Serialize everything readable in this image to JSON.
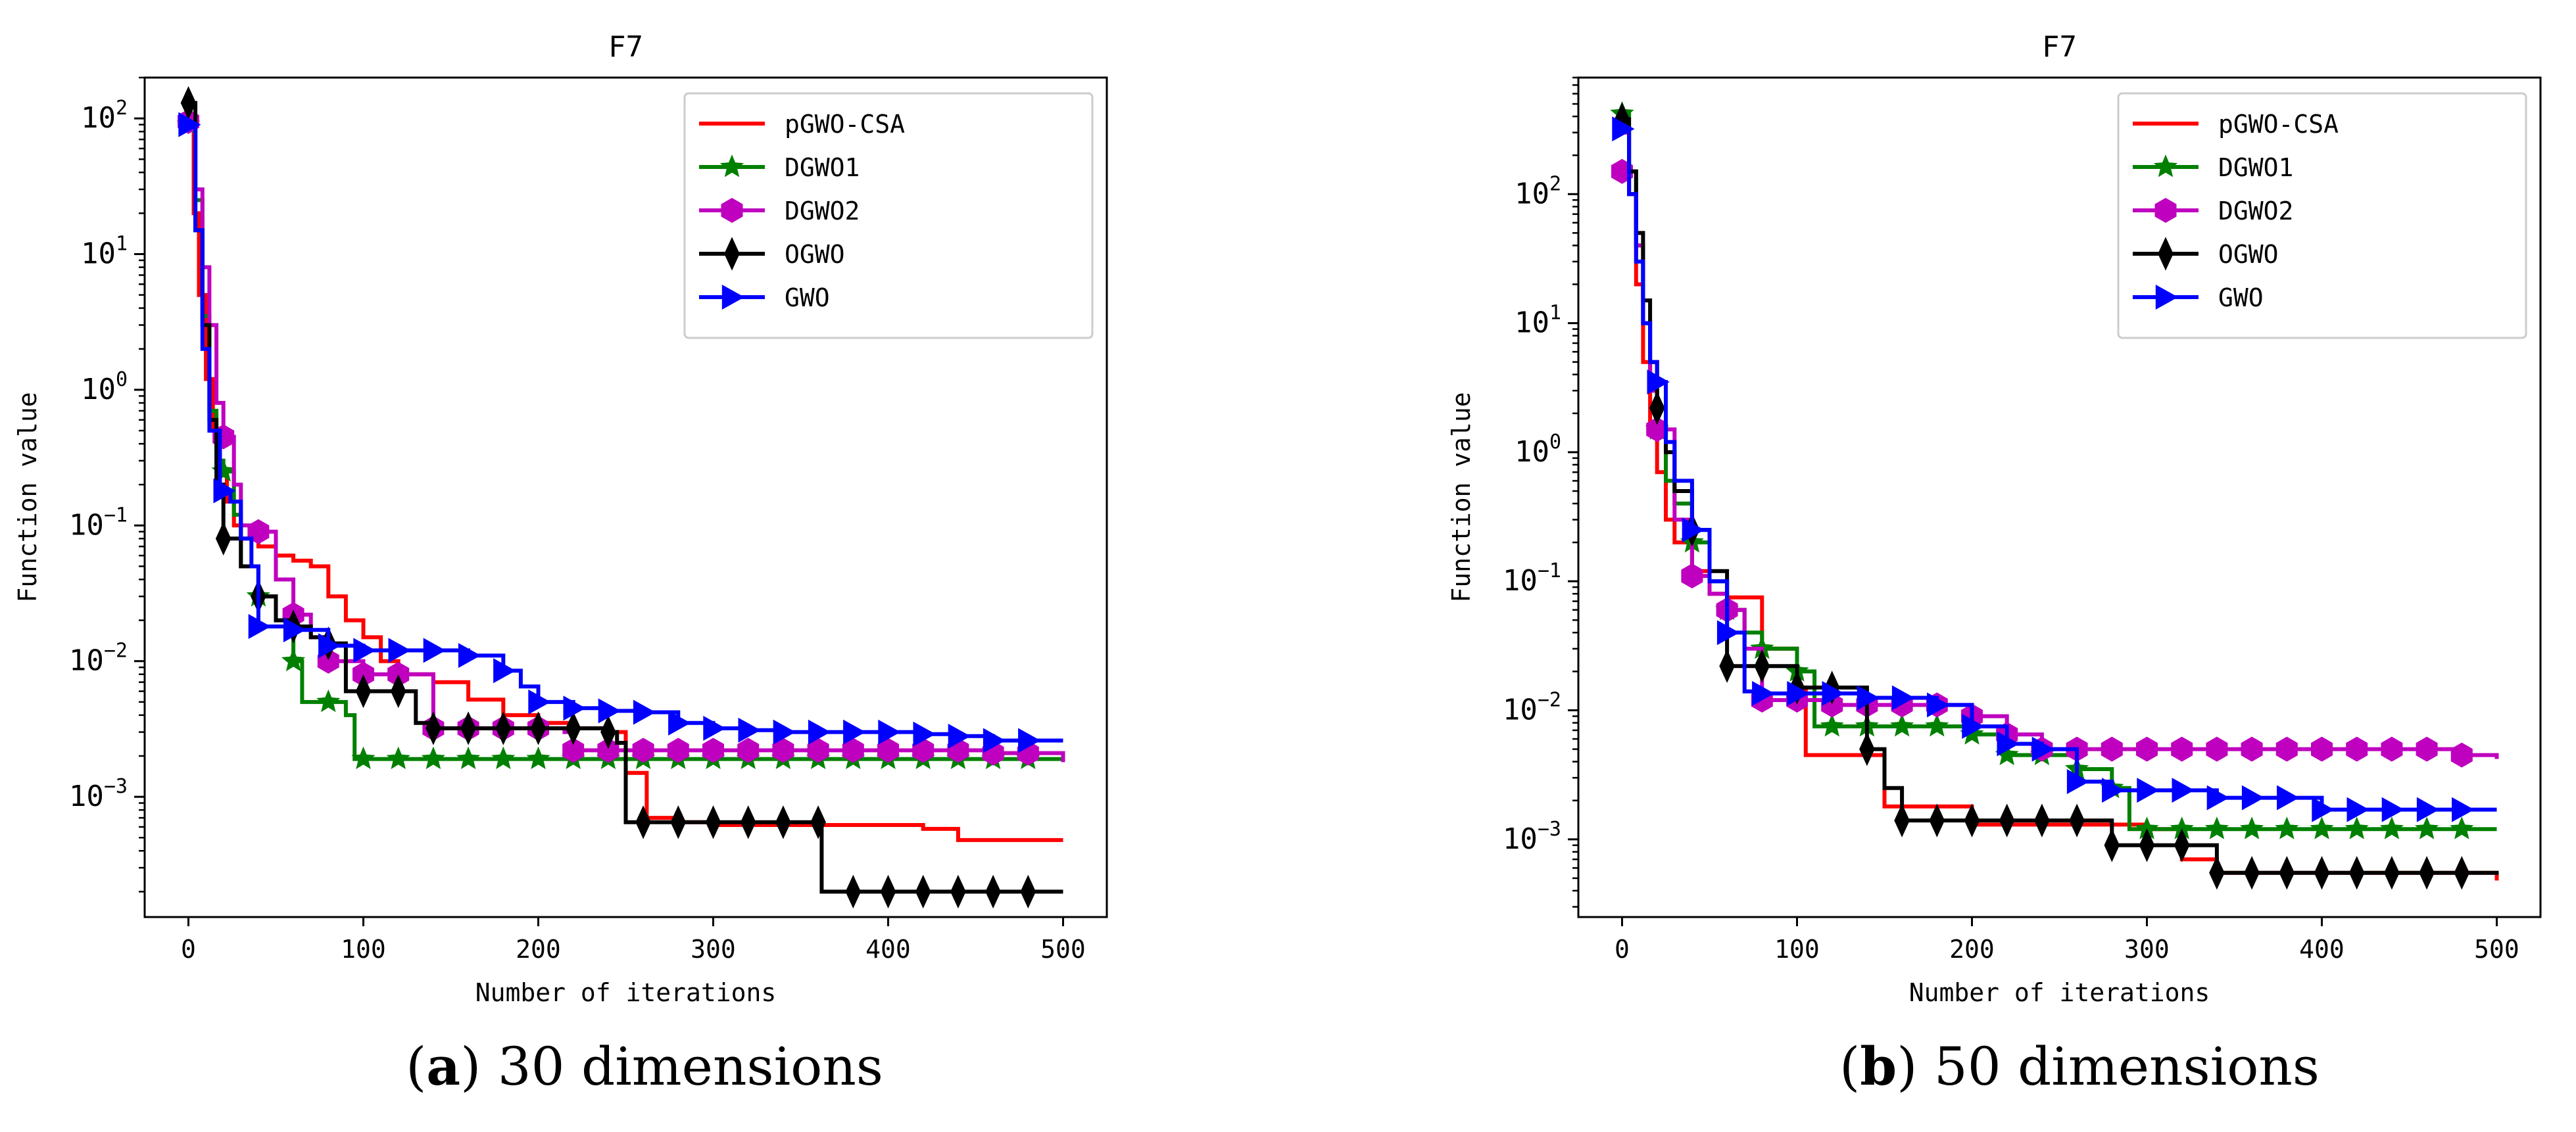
{
  "captions": [
    {
      "letter": "a",
      "text": "30 dimensions"
    },
    {
      "letter": "b",
      "text": "50 dimensions"
    }
  ],
  "chart_data": [
    {
      "type": "line",
      "title": "F7",
      "xlabel": "Number of iterations",
      "ylabel": "Function value",
      "yscale": "log",
      "xlim": [
        -25,
        525
      ],
      "ylim": [
        0.00013,
        200
      ],
      "xticks": [
        0,
        100,
        200,
        300,
        400,
        500
      ],
      "ytick_exponents": [
        -3,
        -2,
        -1,
        0,
        1,
        2
      ],
      "grid": false,
      "legend_position": "top-right",
      "series": [
        {
          "name": "pGWO-CSA",
          "color": "#ff0000",
          "marker": "none",
          "x": [
            0,
            3,
            6,
            10,
            14,
            18,
            22,
            26,
            30,
            40,
            50,
            60,
            70,
            80,
            90,
            100,
            110,
            120,
            140,
            160,
            180,
            200,
            220,
            240,
            250,
            262,
            280,
            300,
            420,
            440,
            500
          ],
          "y": [
            100,
            20,
            5,
            1.2,
            0.5,
            0.25,
            0.15,
            0.1,
            0.08,
            0.07,
            0.06,
            0.055,
            0.05,
            0.03,
            0.02,
            0.015,
            0.01,
            0.008,
            0.007,
            0.0052,
            0.004,
            0.0035,
            0.0032,
            0.003,
            0.0015,
            0.0007,
            0.00065,
            0.00062,
            0.00058,
            0.00048,
            0.00048
          ]
        },
        {
          "name": "DGWO1",
          "color": "#008000",
          "marker": "star",
          "x": [
            0,
            4,
            8,
            12,
            16,
            20,
            26,
            30,
            40,
            50,
            60,
            65,
            80,
            90,
            95,
            100,
            500
          ],
          "y": [
            90,
            25,
            3.5,
            0.7,
            0.3,
            0.25,
            0.12,
            0.05,
            0.03,
            0.02,
            0.01,
            0.005,
            0.005,
            0.004,
            0.0019,
            0.0019,
            0.0019
          ]
        },
        {
          "name": "DGWO2",
          "color": "#bf00bf",
          "marker": "hexagon",
          "x": [
            0,
            4,
            8,
            12,
            16,
            20,
            26,
            30,
            40,
            50,
            60,
            70,
            80,
            100,
            120,
            140,
            160,
            200,
            215,
            220,
            460,
            500
          ],
          "y": [
            95,
            30,
            8,
            3,
            0.8,
            0.45,
            0.2,
            0.1,
            0.09,
            0.04,
            0.022,
            0.015,
            0.01,
            0.008,
            0.008,
            0.0032,
            0.0032,
            0.0032,
            0.003,
            0.0022,
            0.0021,
            0.0018
          ]
        },
        {
          "name": "OGWO",
          "color": "#000000",
          "marker": "diamond",
          "x": [
            0,
            4,
            8,
            12,
            16,
            20,
            30,
            40,
            50,
            60,
            70,
            80,
            90,
            100,
            120,
            130,
            140,
            240,
            245,
            250,
            360,
            362,
            500
          ],
          "y": [
            130,
            15,
            3,
            0.6,
            0.2,
            0.08,
            0.05,
            0.03,
            0.02,
            0.018,
            0.015,
            0.0135,
            0.006,
            0.006,
            0.006,
            0.0035,
            0.0032,
            0.003,
            0.0025,
            0.00065,
            0.00065,
            0.0002,
            0.0002
          ]
        },
        {
          "name": "GWO",
          "color": "#0000ff",
          "marker": "triangle-right",
          "x": [
            0,
            4,
            8,
            12,
            18,
            24,
            30,
            36,
            40,
            60,
            80,
            100,
            120,
            140,
            160,
            180,
            190,
            200,
            220,
            240,
            260,
            280,
            300,
            320,
            340,
            400,
            420,
            440,
            460,
            500
          ],
          "y": [
            90,
            15,
            2,
            0.5,
            0.18,
            0.15,
            0.08,
            0.05,
            0.018,
            0.017,
            0.013,
            0.012,
            0.012,
            0.012,
            0.011,
            0.0085,
            0.0065,
            0.005,
            0.0045,
            0.0043,
            0.0042,
            0.0035,
            0.0032,
            0.0031,
            0.003,
            0.003,
            0.0029,
            0.0028,
            0.0026,
            0.0026
          ]
        }
      ]
    },
    {
      "type": "line",
      "title": "F7",
      "xlabel": "Number of iterations",
      "ylabel": "Function value",
      "yscale": "log",
      "xlim": [
        -25,
        525
      ],
      "ylim": [
        0.00025,
        800
      ],
      "xticks": [
        0,
        100,
        200,
        300,
        400,
        500
      ],
      "ytick_exponents": [
        -3,
        -2,
        -1,
        0,
        1,
        2
      ],
      "grid": false,
      "legend_position": "top-right",
      "series": [
        {
          "name": "pGWO-CSA",
          "color": "#ff0000",
          "marker": "none",
          "x": [
            0,
            4,
            8,
            12,
            16,
            20,
            25,
            30,
            40,
            50,
            60,
            80,
            100,
            105,
            120,
            150,
            200,
            300,
            320,
            340,
            500
          ],
          "y": [
            300,
            100,
            20,
            5,
            1.5,
            0.7,
            0.3,
            0.2,
            0.12,
            0.08,
            0.075,
            0.03,
            0.015,
            0.0045,
            0.0045,
            0.0018,
            0.0013,
            0.0012,
            0.0007,
            0.00055,
            0.00048
          ]
        },
        {
          "name": "DGWO1",
          "color": "#008000",
          "marker": "star",
          "x": [
            0,
            4,
            8,
            12,
            16,
            20,
            25,
            30,
            40,
            50,
            60,
            70,
            80,
            100,
            110,
            200,
            220,
            260,
            280,
            290,
            500
          ],
          "y": [
            420,
            150,
            40,
            10,
            3,
            1.5,
            0.6,
            0.4,
            0.2,
            0.1,
            0.06,
            0.04,
            0.03,
            0.02,
            0.0075,
            0.0065,
            0.0045,
            0.0035,
            0.0025,
            0.0012,
            0.0012
          ]
        },
        {
          "name": "DGWO2",
          "color": "#bf00bf",
          "marker": "hexagon",
          "x": [
            0,
            4,
            8,
            12,
            16,
            20,
            30,
            40,
            50,
            60,
            70,
            80,
            100,
            120,
            160,
            200,
            220,
            240,
            480,
            500
          ],
          "y": [
            150,
            100,
            40,
            10,
            3,
            1.5,
            0.3,
            0.11,
            0.08,
            0.06,
            0.03,
            0.012,
            0.012,
            0.011,
            0.011,
            0.009,
            0.0065,
            0.005,
            0.0045,
            0.0042
          ]
        },
        {
          "name": "OGWO",
          "color": "#000000",
          "marker": "diamond",
          "x": [
            0,
            4,
            8,
            12,
            16,
            20,
            25,
            30,
            40,
            50,
            60,
            80,
            100,
            120,
            140,
            150,
            160,
            270,
            280,
            320,
            340,
            500
          ],
          "y": [
            380,
            150,
            50,
            15,
            5,
            2.2,
            1,
            0.5,
            0.25,
            0.12,
            0.022,
            0.022,
            0.015,
            0.015,
            0.005,
            0.0025,
            0.0014,
            0.0014,
            0.0009,
            0.0009,
            0.00055,
            0.00053
          ]
        },
        {
          "name": "GWO",
          "color": "#0000ff",
          "marker": "triangle-right",
          "x": [
            0,
            4,
            8,
            12,
            16,
            20,
            25,
            30,
            40,
            50,
            60,
            70,
            80,
            100,
            140,
            180,
            200,
            220,
            240,
            260,
            280,
            340,
            400,
            500
          ],
          "y": [
            320,
            100,
            30,
            10,
            5,
            3.5,
            1.2,
            0.6,
            0.25,
            0.1,
            0.04,
            0.014,
            0.0135,
            0.0135,
            0.0125,
            0.011,
            0.0075,
            0.0055,
            0.005,
            0.0028,
            0.0024,
            0.0021,
            0.0017,
            0.0017
          ]
        }
      ]
    }
  ]
}
